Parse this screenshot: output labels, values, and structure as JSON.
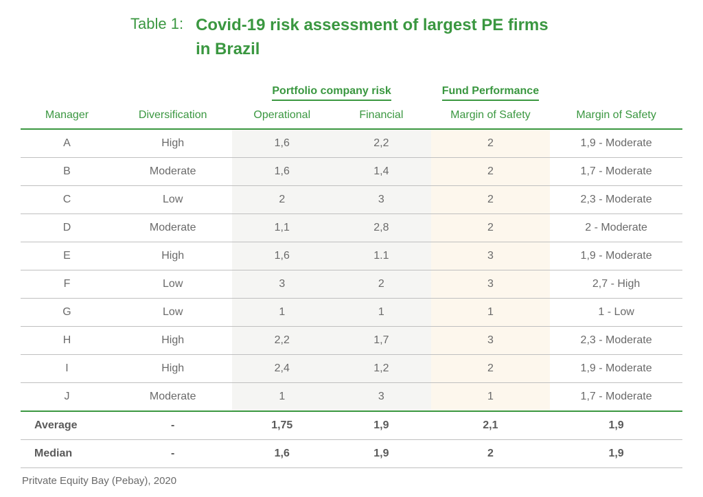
{
  "title": {
    "label": "Table 1:",
    "text": "Covid-19 risk assessment of largest PE firms in Brazil"
  },
  "headers": {
    "group_portfolio": "Portfolio company risk",
    "group_fund": "Fund Performance",
    "manager": "Manager",
    "diversification": "Diversification",
    "operational": "Operational",
    "financial": "Financial",
    "mos1": "Margin of Safety",
    "mos2": "Margin of Safety"
  },
  "rows": [
    {
      "manager": "A",
      "div": "High",
      "op": "1,6",
      "fin": "2,2",
      "mos": "2",
      "rating": "1,9 - Moderate"
    },
    {
      "manager": "B",
      "div": "Moderate",
      "op": "1,6",
      "fin": "1,4",
      "mos": "2",
      "rating": "1,7 - Moderate"
    },
    {
      "manager": "C",
      "div": "Low",
      "op": "2",
      "fin": "3",
      "mos": "2",
      "rating": "2,3 - Moderate"
    },
    {
      "manager": "D",
      "div": "Moderate",
      "op": "1,1",
      "fin": "2,8",
      "mos": "2",
      "rating": "2 - Moderate"
    },
    {
      "manager": "E",
      "div": "High",
      "op": "1,6",
      "fin": "1.1",
      "mos": "3",
      "rating": "1,9 - Moderate"
    },
    {
      "manager": "F",
      "div": "Low",
      "op": "3",
      "fin": "2",
      "mos": "3",
      "rating": "2,7 - High"
    },
    {
      "manager": "G",
      "div": "Low",
      "op": "1",
      "fin": "1",
      "mos": "1",
      "rating": "1 - Low"
    },
    {
      "manager": "H",
      "div": "High",
      "op": "2,2",
      "fin": "1,7",
      "mos": "3",
      "rating": "2,3 - Moderate"
    },
    {
      "manager": "I",
      "div": "High",
      "op": "2,4",
      "fin": "1,2",
      "mos": "2",
      "rating": "1,9 - Moderate"
    },
    {
      "manager": "J",
      "div": "Moderate",
      "op": "1",
      "fin": "3",
      "mos": "1",
      "rating": "1,7 - Moderate"
    }
  ],
  "footer": {
    "average": {
      "label": "Average",
      "div": "-",
      "op": "1,75",
      "fin": "1,9",
      "mos": "2,1",
      "rating": "1,9"
    },
    "median": {
      "label": "Median",
      "div": "-",
      "op": "1,6",
      "fin": "1,9",
      "mos": "2",
      "rating": "1,9"
    }
  },
  "source": "Pritvate Equity Bay (Pebay), 2020",
  "style": {
    "brand_green": "#3a9740",
    "text_grey": "#6a6a6a",
    "shade_grey": "#f5f5f3",
    "shade_cream": "#fdf7ed",
    "border_grey": "#bfbfbf",
    "background": "#ffffff",
    "title_fontsize": 24,
    "label_fontsize": 22,
    "body_fontsize": 16
  }
}
